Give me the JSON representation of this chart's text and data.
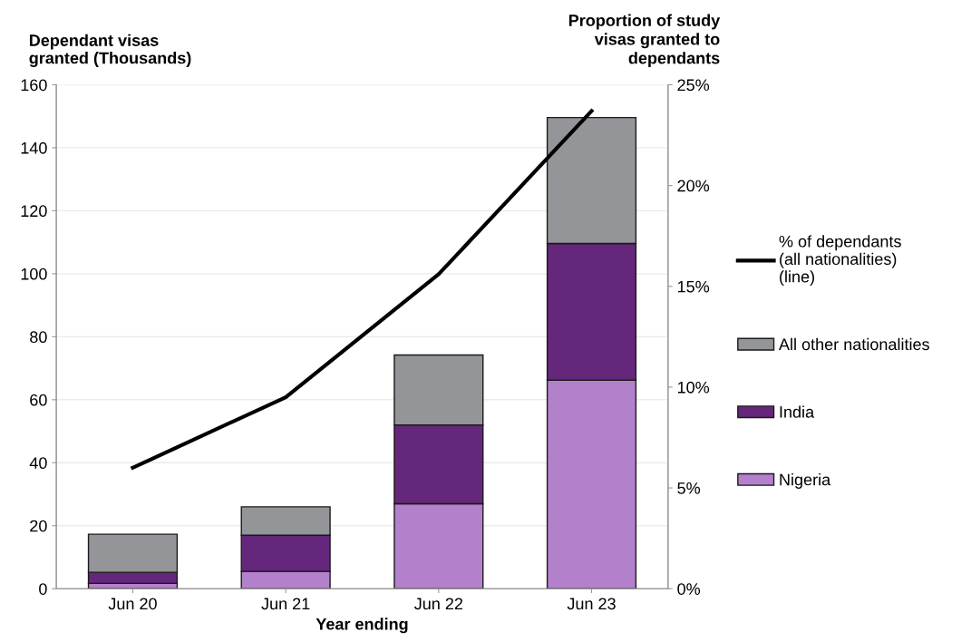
{
  "chart_data": {
    "type": "bar",
    "stacked": true,
    "xlabel": "Year ending",
    "ylabel": "Dependant visas\ngranted (Thousands)",
    "y2label": "Proportion of study\nvisas granted to\ndependants",
    "categories": [
      "Jun 20",
      "Jun 21",
      "Jun 22",
      "Jun 23"
    ],
    "series": [
      {
        "name": "Nigeria",
        "color": "#b380cb",
        "values": [
          1.7,
          5.5,
          27,
          66.2
        ]
      },
      {
        "name": "India",
        "color": "#65277b",
        "values": [
          3.5,
          11.5,
          25,
          43.4
        ]
      },
      {
        "name": "All other nationalities",
        "color": "#939598",
        "values": [
          12.1,
          9,
          22.2,
          40
        ]
      },
      {
        "name": "% of dependants\n(all nationalities)\n(line)",
        "type": "line",
        "axis": "y2",
        "color": "#000000",
        "values": [
          6.0,
          9.5,
          15.6,
          23.7
        ]
      }
    ],
    "ylim": [
      0,
      160
    ],
    "yticks": [
      0,
      20,
      40,
      60,
      80,
      100,
      120,
      140,
      160
    ],
    "y2lim": [
      0,
      25
    ],
    "y2ticks": [
      {
        "value": 0,
        "label": "0%"
      },
      {
        "value": 5,
        "label": "5%"
      },
      {
        "value": 10,
        "label": "10%"
      },
      {
        "value": 15,
        "label": "15%"
      },
      {
        "value": 20,
        "label": "20%"
      },
      {
        "value": 25,
        "label": "25%"
      }
    ],
    "grid": "y",
    "legend": "right",
    "marker": "none",
    "line_style": "solid"
  }
}
